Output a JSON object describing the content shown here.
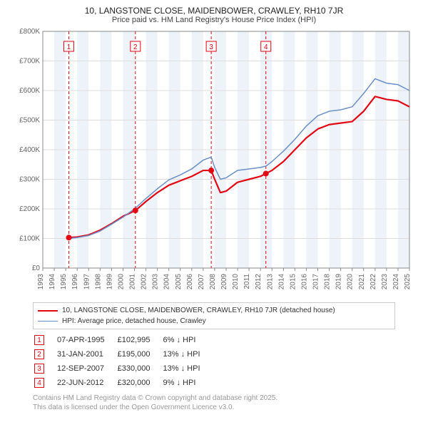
{
  "title": "10, LANGSTONE CLOSE, MAIDENBOWER, CRAWLEY, RH10 7JR",
  "subtitle": "Price paid vs. HM Land Registry's House Price Index (HPI)",
  "chart": {
    "type": "line",
    "background_color": "#ffffff",
    "shaded_band_color": "#eef3fa",
    "grid_color": "#dddddd",
    "axis_color": "#888888",
    "axis_fontsize": 10,
    "y": {
      "min": 0,
      "max": 800000,
      "step": 100000,
      "tick_labels": [
        "£0",
        "£100K",
        "£200K",
        "£300K",
        "£400K",
        "£500K",
        "£600K",
        "£700K",
        "£800K"
      ]
    },
    "x": {
      "min": 1993,
      "max": 2025,
      "step": 1,
      "tick_labels": [
        "1993",
        "1994",
        "1995",
        "1996",
        "1997",
        "1998",
        "1999",
        "2000",
        "2001",
        "2002",
        "2003",
        "2004",
        "2005",
        "2006",
        "2007",
        "2008",
        "2009",
        "2010",
        "2011",
        "2012",
        "2013",
        "2014",
        "2015",
        "2016",
        "2017",
        "2018",
        "2019",
        "2020",
        "2021",
        "2022",
        "2023",
        "2024",
        "2025"
      ]
    },
    "series": [
      {
        "name": "property",
        "color": "#e30613",
        "width": 2.2,
        "data": [
          [
            1995.3,
            102995
          ],
          [
            1996,
            105000
          ],
          [
            1997,
            112000
          ],
          [
            1998,
            128000
          ],
          [
            1999,
            150000
          ],
          [
            2000,
            175000
          ],
          [
            2001.1,
            195000
          ],
          [
            2002,
            225000
          ],
          [
            2003,
            255000
          ],
          [
            2004,
            280000
          ],
          [
            2005,
            295000
          ],
          [
            2006,
            310000
          ],
          [
            2007,
            330000
          ],
          [
            2007.7,
            330000
          ],
          [
            2008,
            300000
          ],
          [
            2008.5,
            255000
          ],
          [
            2009,
            260000
          ],
          [
            2010,
            290000
          ],
          [
            2011,
            300000
          ],
          [
            2012,
            310000
          ],
          [
            2012.5,
            320000
          ],
          [
            2013,
            330000
          ],
          [
            2014,
            360000
          ],
          [
            2015,
            400000
          ],
          [
            2016,
            440000
          ],
          [
            2017,
            470000
          ],
          [
            2018,
            485000
          ],
          [
            2019,
            490000
          ],
          [
            2020,
            495000
          ],
          [
            2021,
            530000
          ],
          [
            2022,
            580000
          ],
          [
            2023,
            570000
          ],
          [
            2024,
            565000
          ],
          [
            2025,
            545000
          ]
        ]
      },
      {
        "name": "hpi",
        "color": "#6a8fc7",
        "width": 1.5,
        "data": [
          [
            1995.3,
            100000
          ],
          [
            1996,
            103000
          ],
          [
            1997,
            110000
          ],
          [
            1998,
            125000
          ],
          [
            1999,
            148000
          ],
          [
            2000,
            172000
          ],
          [
            2001,
            200000
          ],
          [
            2002,
            235000
          ],
          [
            2003,
            268000
          ],
          [
            2004,
            298000
          ],
          [
            2005,
            315000
          ],
          [
            2006,
            335000
          ],
          [
            2007,
            365000
          ],
          [
            2007.7,
            375000
          ],
          [
            2008,
            340000
          ],
          [
            2008.5,
            300000
          ],
          [
            2009,
            305000
          ],
          [
            2010,
            330000
          ],
          [
            2011,
            335000
          ],
          [
            2012,
            340000
          ],
          [
            2012.5,
            345000
          ],
          [
            2013,
            360000
          ],
          [
            2014,
            395000
          ],
          [
            2015,
            435000
          ],
          [
            2016,
            480000
          ],
          [
            2017,
            515000
          ],
          [
            2018,
            530000
          ],
          [
            2019,
            535000
          ],
          [
            2020,
            545000
          ],
          [
            2021,
            590000
          ],
          [
            2022,
            640000
          ],
          [
            2023,
            625000
          ],
          [
            2024,
            620000
          ],
          [
            2025,
            600000
          ]
        ]
      }
    ],
    "sale_markers": [
      {
        "n": "1",
        "year": 1995.27,
        "color": "#e30613"
      },
      {
        "n": "2",
        "year": 2001.08,
        "color": "#e30613"
      },
      {
        "n": "3",
        "year": 2007.7,
        "color": "#e30613"
      },
      {
        "n": "4",
        "year": 2012.47,
        "color": "#e30613"
      }
    ],
    "marker_line_dash": "4,3",
    "shaded_bands": [
      [
        1994,
        1995
      ],
      [
        1996,
        1997
      ],
      [
        1998,
        1999
      ],
      [
        2000,
        2001
      ],
      [
        2002,
        2003
      ],
      [
        2004,
        2005
      ],
      [
        2006,
        2007
      ],
      [
        2008,
        2009
      ],
      [
        2010,
        2011
      ],
      [
        2012,
        2013
      ],
      [
        2014,
        2015
      ],
      [
        2016,
        2017
      ],
      [
        2018,
        2019
      ],
      [
        2020,
        2021
      ],
      [
        2022,
        2023
      ],
      [
        2024,
        2025
      ]
    ]
  },
  "legend": {
    "items": [
      {
        "label": "10, LANGSTONE CLOSE, MAIDENBOWER, CRAWLEY, RH10 7JR (detached house)",
        "color": "#e30613",
        "width": 2.2
      },
      {
        "label": "HPI: Average price, detached house, Crawley",
        "color": "#6a8fc7",
        "width": 1.5
      }
    ]
  },
  "sales": [
    {
      "n": "1",
      "date": "07-APR-1995",
      "price": "£102,995",
      "delta": "6% ↓ HPI",
      "color": "#e30613"
    },
    {
      "n": "2",
      "date": "31-JAN-2001",
      "price": "£195,000",
      "delta": "13% ↓ HPI",
      "color": "#e30613"
    },
    {
      "n": "3",
      "date": "12-SEP-2007",
      "price": "£330,000",
      "delta": "13% ↓ HPI",
      "color": "#e30613"
    },
    {
      "n": "4",
      "date": "22-JUN-2012",
      "price": "£320,000",
      "delta": "9% ↓ HPI",
      "color": "#e30613"
    }
  ],
  "footnote_line1": "Contains HM Land Registry data © Crown copyright and database right 2025.",
  "footnote_line2": "This data is licensed under the Open Government Licence v3.0."
}
